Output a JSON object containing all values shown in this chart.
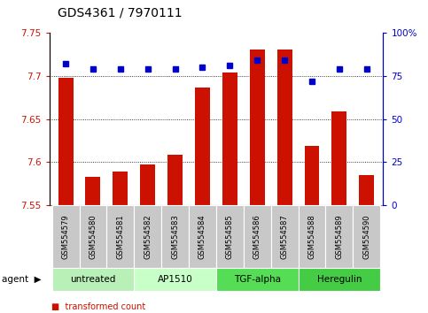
{
  "title": "GDS4361 / 7970111",
  "samples": [
    "GSM554579",
    "GSM554580",
    "GSM554581",
    "GSM554582",
    "GSM554583",
    "GSM554584",
    "GSM554585",
    "GSM554586",
    "GSM554587",
    "GSM554588",
    "GSM554589",
    "GSM554590"
  ],
  "red_values": [
    7.698,
    7.583,
    7.589,
    7.597,
    7.608,
    7.687,
    7.704,
    7.731,
    7.731,
    7.619,
    7.659,
    7.585
  ],
  "blue_values": [
    82,
    79,
    79,
    79,
    79,
    80,
    81,
    84,
    84,
    72,
    79,
    79
  ],
  "y_min": 7.55,
  "y_max": 7.75,
  "y_ticks": [
    7.55,
    7.6,
    7.65,
    7.7,
    7.75
  ],
  "y2_ticks": [
    0,
    25,
    50,
    75,
    100
  ],
  "y2_tick_labels": [
    "0",
    "25",
    "50",
    "75",
    "100%"
  ],
  "grid_values": [
    7.6,
    7.65,
    7.7
  ],
  "agents": [
    {
      "label": "untreated",
      "start": 0,
      "end": 3,
      "color": "#b8f0b8"
    },
    {
      "label": "AP1510",
      "start": 3,
      "end": 6,
      "color": "#c8ffc8"
    },
    {
      "label": "TGF-alpha",
      "start": 6,
      "end": 9,
      "color": "#55dd55"
    },
    {
      "label": "Heregulin",
      "start": 9,
      "end": 12,
      "color": "#44cc44"
    }
  ],
  "bar_color": "#cc1100",
  "dot_color": "#0000cc",
  "bar_width": 0.55,
  "background_label": "#c8c8c8",
  "agent_label_fontsize": 7.5,
  "title_fontsize": 10
}
